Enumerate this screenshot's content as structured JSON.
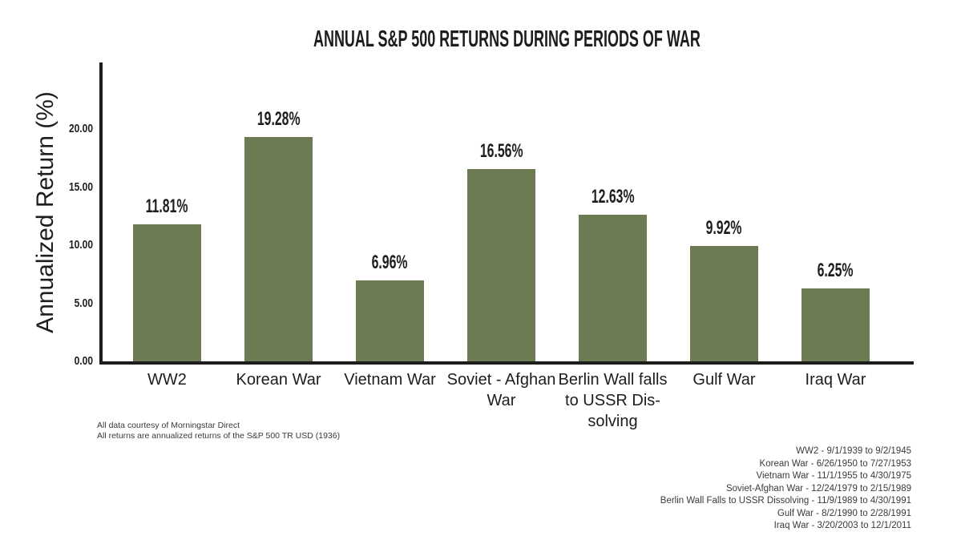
{
  "chart_data": {
    "type": "bar",
    "title": "ANNUAL S&P 500 RETURNS DURING PERIODS OF WAR",
    "ylabel": "Annualized Return (%)",
    "xlabel": "",
    "ylim": [
      0,
      24
    ],
    "grid": false,
    "legend": "none",
    "bar_color": "#6c7b51",
    "axis_color": "#1d1d1b",
    "yticks": [
      0,
      5,
      10,
      15,
      20
    ],
    "ytick_labels": [
      "0.00",
      "5.00",
      "10.00",
      "15.00",
      "20.00"
    ],
    "categories": [
      "WW2",
      "Korean War",
      "Vietnam War",
      "Soviet - Afghan\nWar",
      "Berlin Wall falls\nto USSR Dis-\nsolving",
      "Gulf War",
      "Iraq War"
    ],
    "values": [
      11.81,
      19.28,
      6.96,
      16.56,
      12.63,
      9.92,
      6.25
    ],
    "value_labels": [
      "11.81%",
      "19.28%",
      "6.96%",
      "16.56%",
      "12.63%",
      "9.92%",
      "6.25%"
    ]
  },
  "footnotes": {
    "line1": "All data courtesy of Morningstar Direct",
    "line2": "All returns are annualized returns of the S&P 500 TR USD (1936)"
  },
  "war_periods": [
    "WW2 - 9/1/1939 to 9/2/1945",
    "Korean War - 6/26/1950 to 7/27/1953",
    "Vietnam War - 11/1/1955 to 4/30/1975",
    "Soviet-Afghan War - 12/24/1979 to 2/15/1989",
    "Berlin Wall Falls to USSR Dissolving - 11/9/1989 to 4/30/1991",
    "Gulf War - 8/2/1990 to 2/28/1991",
    "Iraq War - 3/20/2003 to 12/1/2011"
  ],
  "colors": {
    "background": "#ffffff",
    "bar": "#6c7b51",
    "text": "#1d1d1b"
  }
}
